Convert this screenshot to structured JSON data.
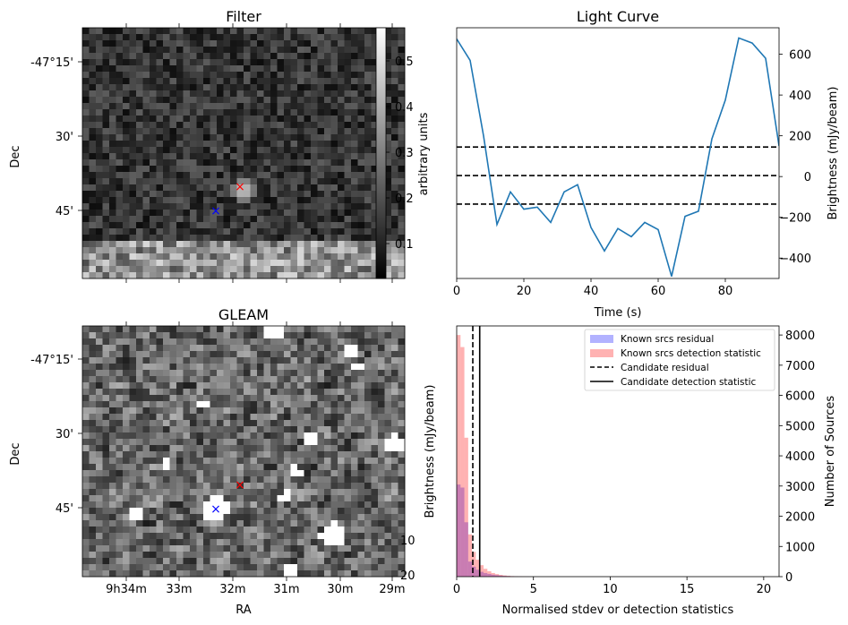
{
  "figure": {
    "panels": {
      "filter": {
        "title": "Filter",
        "ylabel": "Dec",
        "yticks": [
          "-47°15'",
          "30'",
          "45'"
        ],
        "colorbar_label": "arbitrary units",
        "colorbar_ticks": [
          "0.5",
          "0.4",
          "0.3",
          "0.2",
          "0.1"
        ],
        "colorbar_range": [
          0.02,
          0.57
        ],
        "markers": [
          {
            "symbol": "×",
            "color": "#ff0000",
            "role": "candidate"
          },
          {
            "symbol": "×",
            "color": "#0000ff",
            "role": "known-source"
          }
        ]
      },
      "gleam": {
        "title": "GLEAM",
        "ylabel": "Dec",
        "xlabel": "RA",
        "yticks": [
          "-47°15'",
          "30'",
          "45'"
        ],
        "xticks": [
          "9h34m",
          "33m",
          "32m",
          "31m",
          "30m",
          "29m"
        ],
        "colorbar_ticks": [
          "10",
          "20"
        ],
        "markers": [
          {
            "symbol": "×",
            "color": "#ff0000",
            "role": "candidate"
          },
          {
            "symbol": "×",
            "color": "#0000ff",
            "role": "known-source"
          }
        ]
      }
    }
  },
  "chart_data": [
    {
      "type": "line",
      "title": "Light Curve",
      "xlabel": "Time (s)",
      "ylabel": "Brightness (mJy/beam)",
      "xlim": [
        0,
        96
      ],
      "ylim": [
        -500,
        730
      ],
      "xticks": [
        0,
        20,
        40,
        60,
        80
      ],
      "yticks": [
        -400,
        -200,
        0,
        200,
        400,
        600
      ],
      "color": "#1f77b4",
      "x": [
        0,
        4,
        8,
        12,
        16,
        20,
        24,
        28,
        32,
        36,
        40,
        44,
        48,
        52,
        56,
        60,
        64,
        68,
        72,
        76,
        80,
        84,
        88,
        92,
        96
      ],
      "y": [
        675,
        570,
        200,
        -235,
        -75,
        -160,
        -150,
        -225,
        -75,
        -40,
        -250,
        -365,
        -255,
        -295,
        -225,
        -260,
        -490,
        -195,
        -170,
        185,
        375,
        680,
        655,
        580,
        150
      ],
      "hlines": [
        {
          "y": 145,
          "style": "dashed",
          "color": "#000000"
        },
        {
          "y": 5,
          "style": "dashed",
          "color": "#000000"
        },
        {
          "y": -135,
          "style": "dashed",
          "color": "#000000"
        }
      ]
    },
    {
      "type": "bar",
      "subtype": "histogram",
      "xlabel": "Normalised stdev or detection statistics",
      "ylabel": "Number of Sources",
      "ylabel_left": "Brightness (mJy/beam)",
      "xlim": [
        0,
        21
      ],
      "ylim": [
        0,
        8300
      ],
      "xticks": [
        0,
        5,
        10,
        15,
        20
      ],
      "yticks": [
        0,
        1000,
        2000,
        3000,
        4000,
        5000,
        6000,
        7000,
        8000
      ],
      "bin_width": 0.25,
      "series": [
        {
          "name": "Known srcs residual",
          "color": "#0000ff",
          "alpha": 0.3,
          "bin_starts": [
            0,
            0.25,
            0.5,
            0.75,
            1.0,
            1.25,
            1.5,
            1.75,
            2.0,
            2.25,
            2.5,
            2.75,
            3.0,
            3.25,
            3.5,
            3.75,
            4.0,
            4.25,
            4.5
          ],
          "values": [
            3050,
            2950,
            1800,
            500,
            330,
            230,
            160,
            120,
            90,
            65,
            50,
            35,
            25,
            18,
            12,
            8,
            5,
            3,
            2
          ]
        },
        {
          "name": "Known srcs detection statistic",
          "color": "#ff0000",
          "alpha": 0.3,
          "bin_starts": [
            0,
            0.25,
            0.5,
            0.75,
            1.0,
            1.25,
            1.5,
            1.75,
            2.0,
            2.25,
            2.5,
            2.75,
            3.0,
            3.25,
            3.5,
            3.75,
            4.0,
            4.25,
            4.5
          ],
          "values": [
            8000,
            7600,
            4600,
            1400,
            820,
            560,
            380,
            260,
            180,
            120,
            85,
            60,
            40,
            28,
            18,
            12,
            8,
            5,
            3
          ]
        }
      ],
      "vlines": [
        {
          "name": "Candidate residual",
          "x": 1.05,
          "style": "dashed",
          "color": "#000000"
        },
        {
          "name": "Candidate detection statistic",
          "x": 1.5,
          "style": "solid",
          "color": "#000000"
        }
      ],
      "legend_position": "top-right"
    }
  ]
}
